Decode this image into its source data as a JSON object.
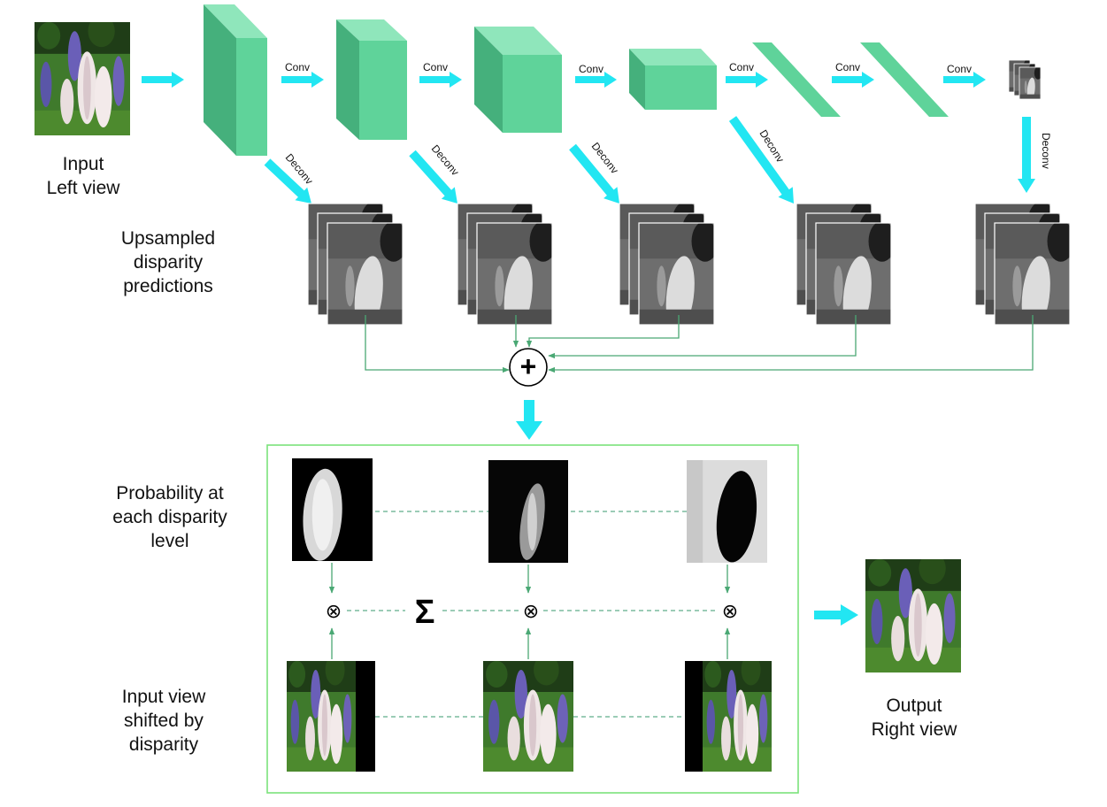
{
  "labels": {
    "input_left": [
      "Input",
      "Left view"
    ],
    "upsampled": [
      "Upsampled",
      "disparity",
      "predictions"
    ],
    "probability": [
      "Probability at",
      "each disparity",
      "level"
    ],
    "input_shifted": [
      "Input view",
      "shifted by",
      "disparity"
    ],
    "output_right": [
      "Output",
      "Right view"
    ]
  },
  "conv_label": "Conv",
  "deconv_label": "Deconv",
  "symbols": {
    "sum": "+",
    "sigma": "Σ",
    "multiply": "⊗"
  },
  "colors": {
    "arrow": "#22e6f2",
    "block_front": "#5fd39a",
    "block_side": "#45b07c",
    "block_top": "#8fe6bb",
    "connector": "#4aa874",
    "dashed": "#5fae8a",
    "panel_border": "#7be37b"
  },
  "icons": {
    "flower_photo": "flower-photo-icon",
    "disparity_map": "disparity-map-icon",
    "probability_map": "probability-map-icon"
  }
}
